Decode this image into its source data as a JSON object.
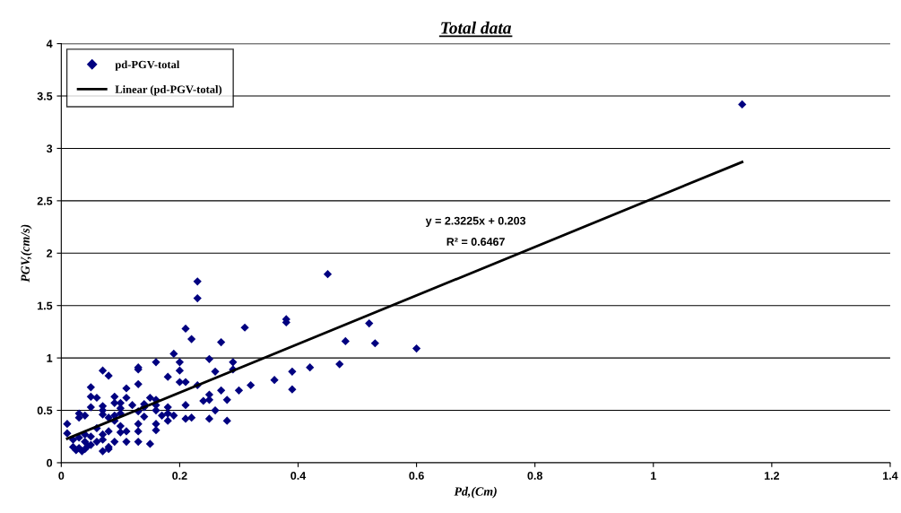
{
  "chart_data": {
    "type": "scatter",
    "title": "Total data",
    "xlabel": "Pd,(Cm)",
    "ylabel": "PGV,(cm/s)",
    "xlim": [
      0,
      1.4
    ],
    "xticks": [
      0,
      0.2,
      0.4,
      0.6,
      0.8,
      1,
      1.2,
      1.4
    ],
    "ylim": [
      0,
      4
    ],
    "yticks": [
      0,
      0.5,
      1,
      1.5,
      2,
      2.5,
      3,
      3.5,
      4
    ],
    "grid": "y",
    "legend": "top left",
    "annotations": [
      "y = 2.3225x + 0.203",
      "R² = 0.6467"
    ],
    "series": [
      {
        "name": "pd-PGV-total",
        "marker": "diamond",
        "color": "#000080",
        "x": [
          0.01,
          0.01,
          0.02,
          0.02,
          0.025,
          0.03,
          0.03,
          0.03,
          0.03,
          0.035,
          0.04,
          0.04,
          0.04,
          0.04,
          0.045,
          0.05,
          0.05,
          0.05,
          0.05,
          0.05,
          0.06,
          0.06,
          0.06,
          0.07,
          0.07,
          0.07,
          0.07,
          0.07,
          0.07,
          0.07,
          0.08,
          0.08,
          0.08,
          0.08,
          0.08,
          0.09,
          0.09,
          0.09,
          0.09,
          0.09,
          0.1,
          0.1,
          0.1,
          0.1,
          0.1,
          0.11,
          0.11,
          0.11,
          0.11,
          0.12,
          0.13,
          0.13,
          0.13,
          0.13,
          0.13,
          0.13,
          0.13,
          0.14,
          0.14,
          0.14,
          0.15,
          0.15,
          0.16,
          0.16,
          0.16,
          0.16,
          0.16,
          0.16,
          0.17,
          0.18,
          0.18,
          0.18,
          0.18,
          0.19,
          0.19,
          0.2,
          0.2,
          0.2,
          0.21,
          0.21,
          0.21,
          0.21,
          0.22,
          0.22,
          0.23,
          0.23,
          0.23,
          0.24,
          0.25,
          0.25,
          0.25,
          0.25,
          0.26,
          0.26,
          0.27,
          0.27,
          0.28,
          0.28,
          0.29,
          0.29,
          0.3,
          0.31,
          0.32,
          0.36,
          0.38,
          0.38,
          0.39,
          0.39,
          0.42,
          0.45,
          0.47,
          0.48,
          0.52,
          0.53,
          0.6,
          1.15
        ],
        "values": [
          0.37,
          0.28,
          0.22,
          0.15,
          0.12,
          0.47,
          0.43,
          0.24,
          0.14,
          0.11,
          0.45,
          0.27,
          0.2,
          0.13,
          0.16,
          0.72,
          0.63,
          0.53,
          0.25,
          0.17,
          0.62,
          0.33,
          0.2,
          0.88,
          0.54,
          0.5,
          0.46,
          0.27,
          0.22,
          0.11,
          0.83,
          0.43,
          0.3,
          0.15,
          0.13,
          0.63,
          0.57,
          0.45,
          0.4,
          0.2,
          0.52,
          0.57,
          0.47,
          0.35,
          0.29,
          0.71,
          0.62,
          0.3,
          0.2,
          0.55,
          0.91,
          0.89,
          0.75,
          0.49,
          0.37,
          0.3,
          0.2,
          0.56,
          0.44,
          0.53,
          0.62,
          0.18,
          0.96,
          0.6,
          0.55,
          0.5,
          0.37,
          0.31,
          0.45,
          0.82,
          0.53,
          0.47,
          0.4,
          1.04,
          0.45,
          0.96,
          0.88,
          0.77,
          1.28,
          0.77,
          0.55,
          0.42,
          1.18,
          0.43,
          1.73,
          1.57,
          0.74,
          0.59,
          0.99,
          0.65,
          0.6,
          0.42,
          0.87,
          0.5,
          1.15,
          0.69,
          0.6,
          0.4,
          0.96,
          0.89,
          0.69,
          1.29,
          0.74,
          0.79,
          1.37,
          1.34,
          0.87,
          0.7,
          0.91,
          1.8,
          0.94,
          1.16,
          1.33,
          1.14,
          1.09,
          3.42
        ]
      },
      {
        "name": "Linear (pd-PGV-total)",
        "type": "line",
        "color": "#000000",
        "x": [
          0.01,
          1.15
        ],
        "values": [
          0.23,
          2.87
        ]
      }
    ]
  }
}
